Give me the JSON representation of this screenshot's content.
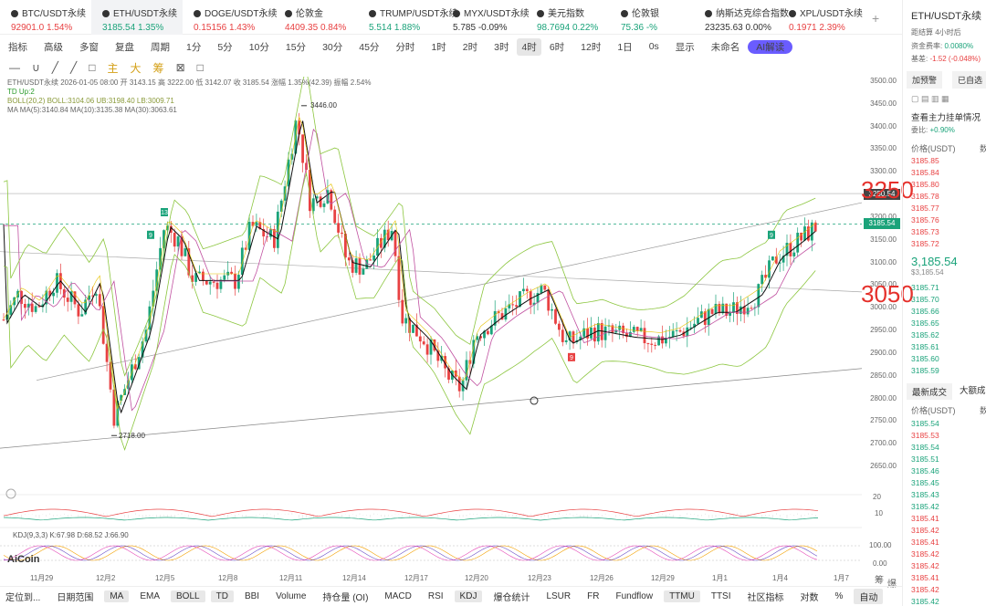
{
  "tickers": [
    {
      "name": "BTC/USDT永续",
      "price": "92901.0",
      "change": "1.54%",
      "dir": "dn",
      "active": false
    },
    {
      "name": "ETH/USDT永续",
      "price": "3185.54",
      "change": "1.35%",
      "dir": "up",
      "active": true
    },
    {
      "name": "DOGE/USDT永续",
      "price": "0.15156",
      "change": "1.43%",
      "dir": "dn",
      "active": false
    },
    {
      "name": "伦敦金",
      "price": "4409.35",
      "change": "0.84%",
      "dir": "dn",
      "active": false
    },
    {
      "name": "TRUMP/USDT永续",
      "price": "5.514",
      "change": "1.88%",
      "dir": "up",
      "active": false
    },
    {
      "name": "MYX/USDT永续",
      "price": "5.785",
      "change": "-0.09%",
      "dir": "",
      "active": false
    },
    {
      "name": "美元指数",
      "price": "98.7694",
      "change": "0.22%",
      "dir": "up",
      "active": false
    },
    {
      "name": "伦敦银",
      "price": "75.36",
      "change": "-%",
      "dir": "up",
      "active": false
    },
    {
      "name": "纳斯达克综合指数",
      "price": "23235.63",
      "change": "0.00%",
      "dir": "",
      "active": false
    },
    {
      "name": "XPL/USDT永续",
      "price": "0.1971",
      "change": "2.39%",
      "dir": "dn",
      "active": false
    }
  ],
  "toolbar": {
    "items": [
      "指标",
      "高级",
      "多窗",
      "复盘",
      "周期",
      "1分",
      "5分",
      "10分",
      "15分",
      "30分",
      "45分",
      "分时",
      "1时",
      "2时",
      "3时",
      "4时",
      "6时",
      "12时",
      "1日",
      "0s",
      "",
      "",
      "",
      "显示",
      "",
      "未命名",
      "AI解读"
    ],
    "selected": "4时"
  },
  "drawbar": {
    "items": [
      "—",
      "∪",
      "╱",
      "╱",
      "□",
      "主",
      "大",
      "筹",
      "⊠",
      "□"
    ]
  },
  "legend": {
    "line1": "ETH/USDT永续  2026-01-05 08:00  开 3143.15  高 3222.00  低 3142.07  收 3185.54  涨幅 1.35%(42.39)  振幅 2.54%",
    "line2": "TD  Up:2",
    "line3": "BOLL(20,2)  BOLL:3104.06  UB:3198.40  LB:3009.71",
    "line4": "MA  MA(5):3140.84  MA(10):3135.38  MA(30):3063.61",
    "kdj": "KDJ(9,3,3)  K:67.98  D:68.52  J:66.90"
  },
  "chart_data": {
    "type": "candlestick",
    "symbol": "ETH/USDT永续",
    "interval": "4时",
    "ylim": [
      2600,
      3500
    ],
    "y_ticks": [
      3500,
      3450,
      3400,
      3350,
      3300,
      3250,
      3200,
      3150,
      3100,
      3050,
      3000,
      2950,
      2900,
      2850,
      2800,
      2750,
      2700,
      2650
    ],
    "x_ticks": [
      "11月29",
      "12月2",
      "12月5",
      "12月8",
      "12月11",
      "12月14",
      "12月17",
      "12月20",
      "12月23",
      "12月26",
      "12月29",
      "1月1",
      "1月4",
      "1月7"
    ],
    "annotations": [
      {
        "label": "3446.00"
      },
      {
        "label": "2718.00"
      },
      {
        "label": "3250"
      },
      {
        "label": "3050"
      }
    ],
    "last_price": "3185.54",
    "marker_price": "3250.54",
    "kdj_axis": [
      "100.00",
      "0.00"
    ],
    "vol_axis": [
      "20",
      "10"
    ],
    "td_labels": [
      "9",
      "13",
      "9",
      "9"
    ]
  },
  "yaxis_labels": [
    "3500.00",
    "3450.00",
    "3400.00",
    "3350.00",
    "3300.00",
    "3250.00",
    "3200.00",
    "3150.00",
    "3100.00",
    "3050.00",
    "3000.00",
    "2950.00",
    "2900.00",
    "2850.00",
    "2800.00",
    "2750.00",
    "2700.00",
    "2650.00"
  ],
  "xaxis_labels": [
    "11月29",
    "12月2",
    "12月5",
    "12月8",
    "12月11",
    "12月14",
    "12月17",
    "12月20",
    "12月23",
    "12月26",
    "12月29",
    "1月1",
    "1月4",
    "1月7"
  ],
  "labels": {
    "high": "3446.00",
    "low": "2718.00",
    "big1": "3250",
    "big2": "3050",
    "price_tag": "3185.54",
    "price_tag2": "3250.54",
    "logo": "AiCoin",
    "sub": "筹",
    "sub2": "爆"
  },
  "bottom": {
    "items": [
      "定位到...",
      "日期范围",
      "MA",
      "EMA",
      "BOLL",
      "TD",
      "BBI",
      "Volume",
      "持仓量 (OI)",
      "MACD",
      "RSI",
      "KDJ",
      "爆仓统计",
      "LSUR",
      "FR",
      "Fundflow",
      "TTMU",
      "TTSI",
      "社区指标",
      "对数",
      "%",
      "自动"
    ],
    "on": [
      "MA",
      "BOLL",
      "TD",
      "KDJ",
      "TTMU",
      "自动"
    ]
  },
  "right": {
    "title": "ETH/USDT永续",
    "funding_label": "距结算",
    "funding_value": "4小时后",
    "rate_label": "资金费率:",
    "rate_value": "0.0080%",
    "basis_label": "基差:",
    "basis_value": "-1.52 (-0.048%)",
    "btn_alert": "加预警",
    "btn_chosen": "已自选",
    "depth_title": "查看主力挂单情况",
    "ratio_label": "委比:",
    "ratio_value": "+0.90%",
    "price_header": "价格(USDT)",
    "qty_header": "数",
    "asks": [
      "3185.85",
      "3185.84",
      "3185.80",
      "3185.78",
      "3185.77",
      "3185.76",
      "3185.73",
      "3185.72"
    ],
    "mid_price": "3,185.54",
    "mid_sub": "$3,185.54",
    "bids": [
      "3185.71",
      "3185.70",
      "3185.66",
      "3185.65",
      "3185.62",
      "3185.61",
      "3185.60",
      "3185.59"
    ],
    "trades_tab": "最新成交",
    "trades_tab2": "大额成",
    "trades": [
      [
        "3185.54",
        "up"
      ],
      [
        "3185.53",
        "dn"
      ],
      [
        "3185.54",
        "up"
      ],
      [
        "3185.51",
        "up"
      ],
      [
        "3185.46",
        "up"
      ],
      [
        "3185.45",
        "up"
      ],
      [
        "3185.43",
        "up"
      ],
      [
        "3185.42",
        "up"
      ],
      [
        "3185.41",
        "dn"
      ],
      [
        "3185.42",
        "dn"
      ],
      [
        "3185.41",
        "dn"
      ],
      [
        "3185.42",
        "dn"
      ],
      [
        "3185.42",
        "dn"
      ],
      [
        "3185.41",
        "dn"
      ],
      [
        "3185.42",
        "dn"
      ],
      [
        "3185.42",
        "up"
      ]
    ]
  }
}
